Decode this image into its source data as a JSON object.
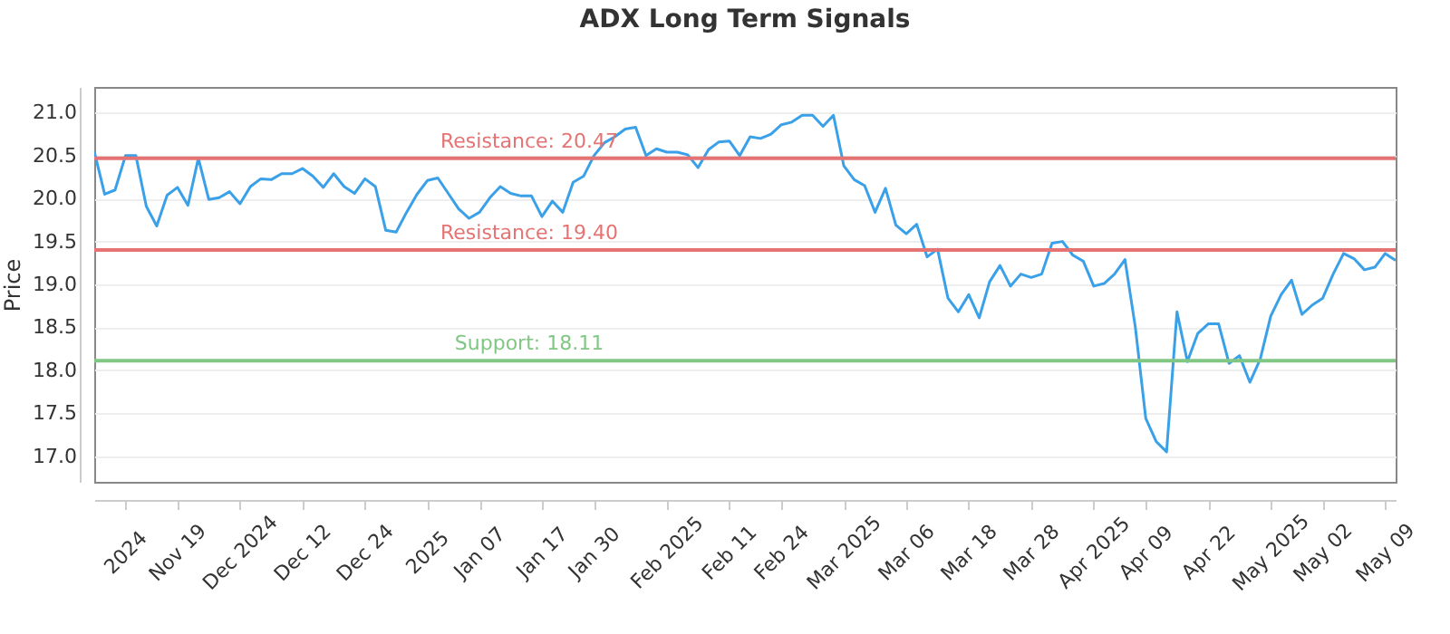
{
  "chart_data": {
    "type": "line",
    "title": "ADX Long Term Signals",
    "ylabel": "Price",
    "categories": [
      null,
      null,
      null,
      "2024",
      null,
      null,
      null,
      null,
      "Nov 19",
      null,
      null,
      null,
      null,
      null,
      "Dec 2024",
      null,
      null,
      null,
      null,
      null,
      "Dec 12",
      null,
      null,
      null,
      null,
      null,
      "Dec 24",
      null,
      null,
      null,
      null,
      null,
      "2025",
      null,
      null,
      null,
      null,
      "Jan 07",
      null,
      null,
      null,
      null,
      null,
      "Jan 17",
      null,
      null,
      null,
      null,
      "Jan 30",
      null,
      null,
      null,
      null,
      null,
      null,
      "Feb 2025",
      null,
      null,
      null,
      null,
      null,
      "Feb 11",
      null,
      null,
      null,
      null,
      "Feb 24",
      null,
      null,
      null,
      null,
      null,
      "Mar 2025",
      null,
      null,
      null,
      null,
      null,
      "Mar 06",
      null,
      null,
      null,
      null,
      null,
      "Mar 18",
      null,
      null,
      null,
      null,
      null,
      "Mar 28",
      null,
      null,
      null,
      null,
      null,
      "Apr 2025",
      null,
      null,
      null,
      null,
      "Apr 09",
      null,
      null,
      null,
      null,
      null,
      "Apr 22",
      null,
      null,
      null,
      null,
      null,
      "May 2025",
      null,
      null,
      null,
      null,
      "May 02",
      null,
      null,
      null,
      null,
      null,
      "May 09",
      null
    ],
    "series": [
      {
        "color": "#3aa0e8",
        "values": [
          20.55,
          20.05,
          20.1,
          20.5,
          20.5,
          19.91,
          19.68,
          20.04,
          20.13,
          19.92,
          20.47,
          19.99,
          20.01,
          20.08,
          19.94,
          20.14,
          20.23,
          20.22,
          20.29,
          20.29,
          20.35,
          20.26,
          20.13,
          20.29,
          20.14,
          20.06,
          20.23,
          20.14,
          19.63,
          19.61,
          19.84,
          20.05,
          20.21,
          20.24,
          20.06,
          19.88,
          19.77,
          19.84,
          20.01,
          20.14,
          20.06,
          20.03,
          20.03,
          19.79,
          19.97,
          19.84,
          20.19,
          20.26,
          20.5,
          20.65,
          20.72,
          20.81,
          20.83,
          20.5,
          20.58,
          20.54,
          20.54,
          20.51,
          20.36,
          20.57,
          20.66,
          20.67,
          20.5,
          20.72,
          20.7,
          20.75,
          20.86,
          20.89,
          20.97,
          20.97,
          20.84,
          20.97,
          20.38,
          20.22,
          20.15,
          19.84,
          20.12,
          19.69,
          19.59,
          19.7,
          19.32,
          19.41,
          18.84,
          18.68,
          18.88,
          18.61,
          19.03,
          19.22,
          18.98,
          19.12,
          19.08,
          19.12,
          19.48,
          19.5,
          19.34,
          19.27,
          18.98,
          19.01,
          19.12,
          19.29,
          18.5,
          17.44,
          17.17,
          17.05,
          18.68,
          18.1,
          18.43,
          18.54,
          18.54,
          18.08,
          18.17,
          17.86,
          18.13,
          18.63,
          18.88,
          19.05,
          18.65,
          18.76,
          18.84,
          19.12,
          19.36,
          19.3,
          19.17,
          19.2,
          19.36,
          19.28
        ]
      }
    ],
    "ylim": [
      16.7,
      21.3
    ],
    "yticks": [
      {
        "value": 17,
        "label": "17.0"
      },
      {
        "value": 17.5,
        "label": "17.5"
      },
      {
        "value": 18,
        "label": "18.0"
      },
      {
        "value": 18.5,
        "label": "18.5"
      },
      {
        "value": 19,
        "label": "19.0"
      },
      {
        "value": 19.5,
        "label": "19.5"
      },
      {
        "value": 20,
        "label": "20.0"
      },
      {
        "value": 20.5,
        "label": "20.5"
      },
      {
        "value": 21,
        "label": "21.0"
      }
    ],
    "grid": "y",
    "ref_lines": [
      {
        "axis": "y",
        "value": 20.47,
        "label": "Resistance: 20.47",
        "color": "#e57373"
      },
      {
        "axis": "y",
        "value": 19.4,
        "label": "Resistance: 19.40",
        "color": "#e57373"
      },
      {
        "axis": "y",
        "value": 18.11,
        "label": "Support: 18.11",
        "color": "#81c784"
      }
    ]
  }
}
